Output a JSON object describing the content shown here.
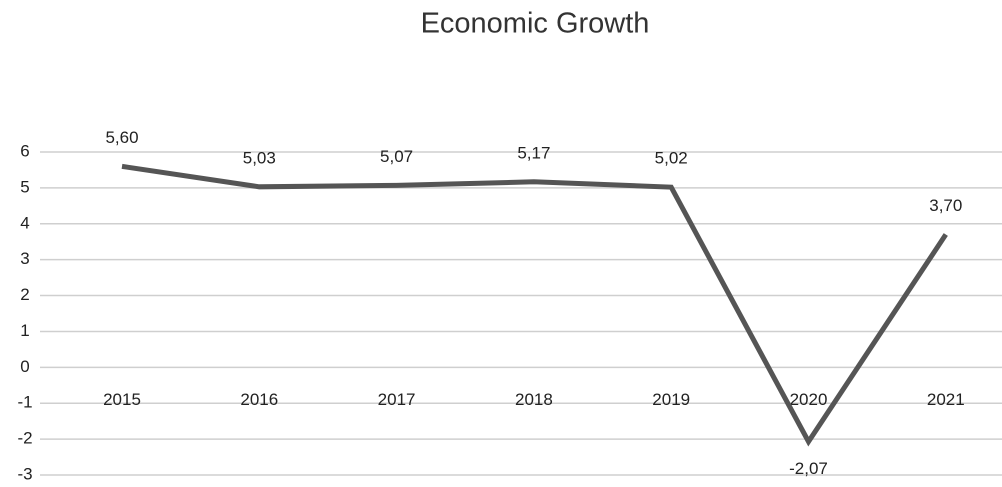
{
  "chart_data": {
    "type": "line",
    "title": "Economic Growth",
    "categories": [
      "2015",
      "2016",
      "2017",
      "2018",
      "2019",
      "2020",
      "2021"
    ],
    "values": [
      5.6,
      5.03,
      5.07,
      5.17,
      5.02,
      -2.07,
      3.7
    ],
    "value_labels": [
      "5,60",
      "5,03",
      "5,07",
      "5,17",
      "5,02",
      "-2,07",
      "3,70"
    ],
    "color": "#555555",
    "ylim": [
      -3,
      6
    ],
    "yticks": [
      -3,
      -2,
      -1,
      0,
      1,
      2,
      3,
      4,
      5,
      6
    ],
    "grid": true
  }
}
